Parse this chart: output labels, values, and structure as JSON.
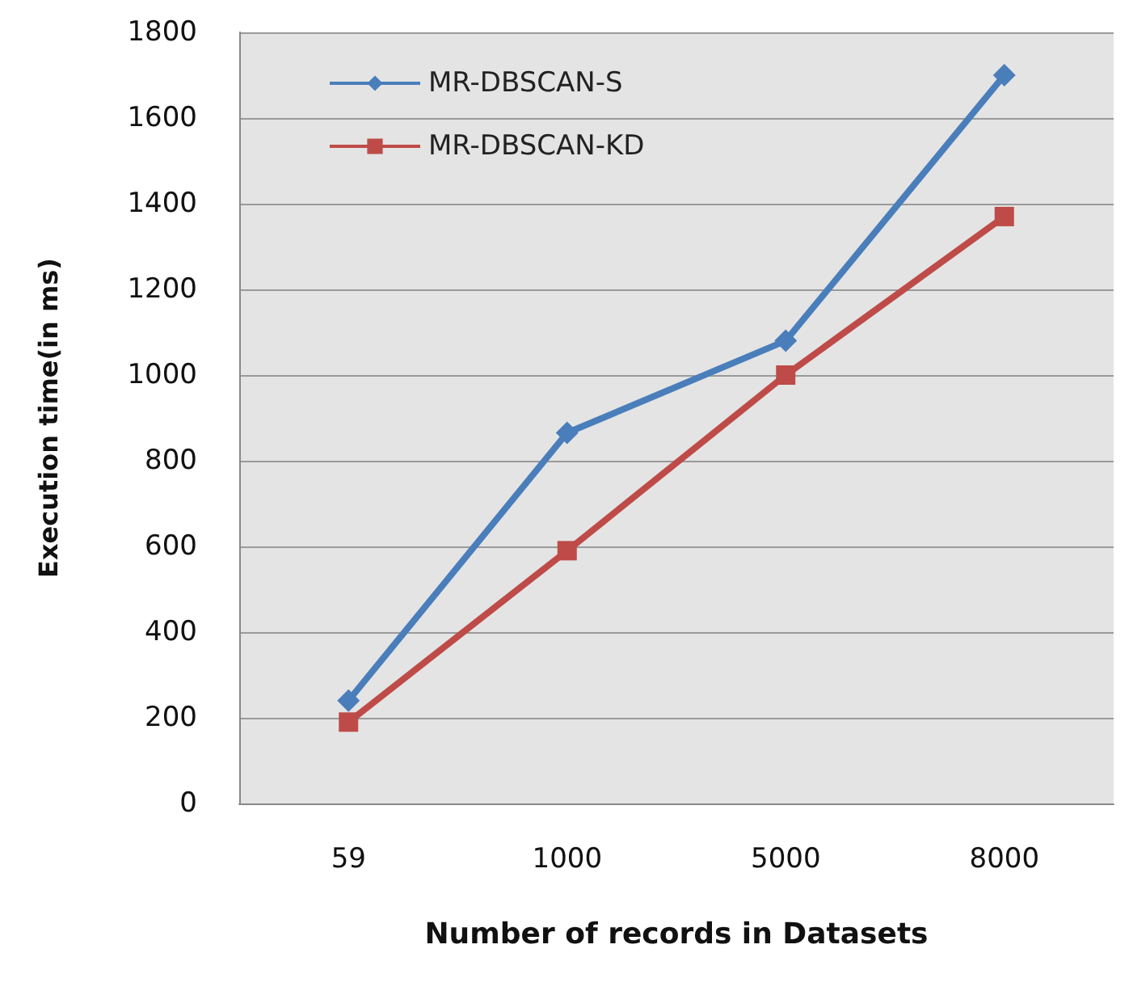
{
  "chart_data": {
    "type": "line",
    "xlabel": "Number of records in Datasets",
    "ylabel": "Execution time(in ms)",
    "categories": [
      "59",
      "1000",
      "5000",
      "8000"
    ],
    "series": [
      {
        "name": "MR-DBSCAN-S",
        "color": "#4a7ebb",
        "marker": "diamond",
        "values": [
          240,
          865,
          1080,
          1700
        ]
      },
      {
        "name": "MR-DBSCAN-KD",
        "color": "#be4b48",
        "marker": "square",
        "values": [
          190,
          590,
          1000,
          1370
        ]
      }
    ],
    "ylim": [
      0,
      1800
    ],
    "yticks": [
      0,
      200,
      400,
      600,
      800,
      1000,
      1200,
      1400,
      1600,
      1800
    ],
    "grid": "y",
    "legend": "top left"
  }
}
